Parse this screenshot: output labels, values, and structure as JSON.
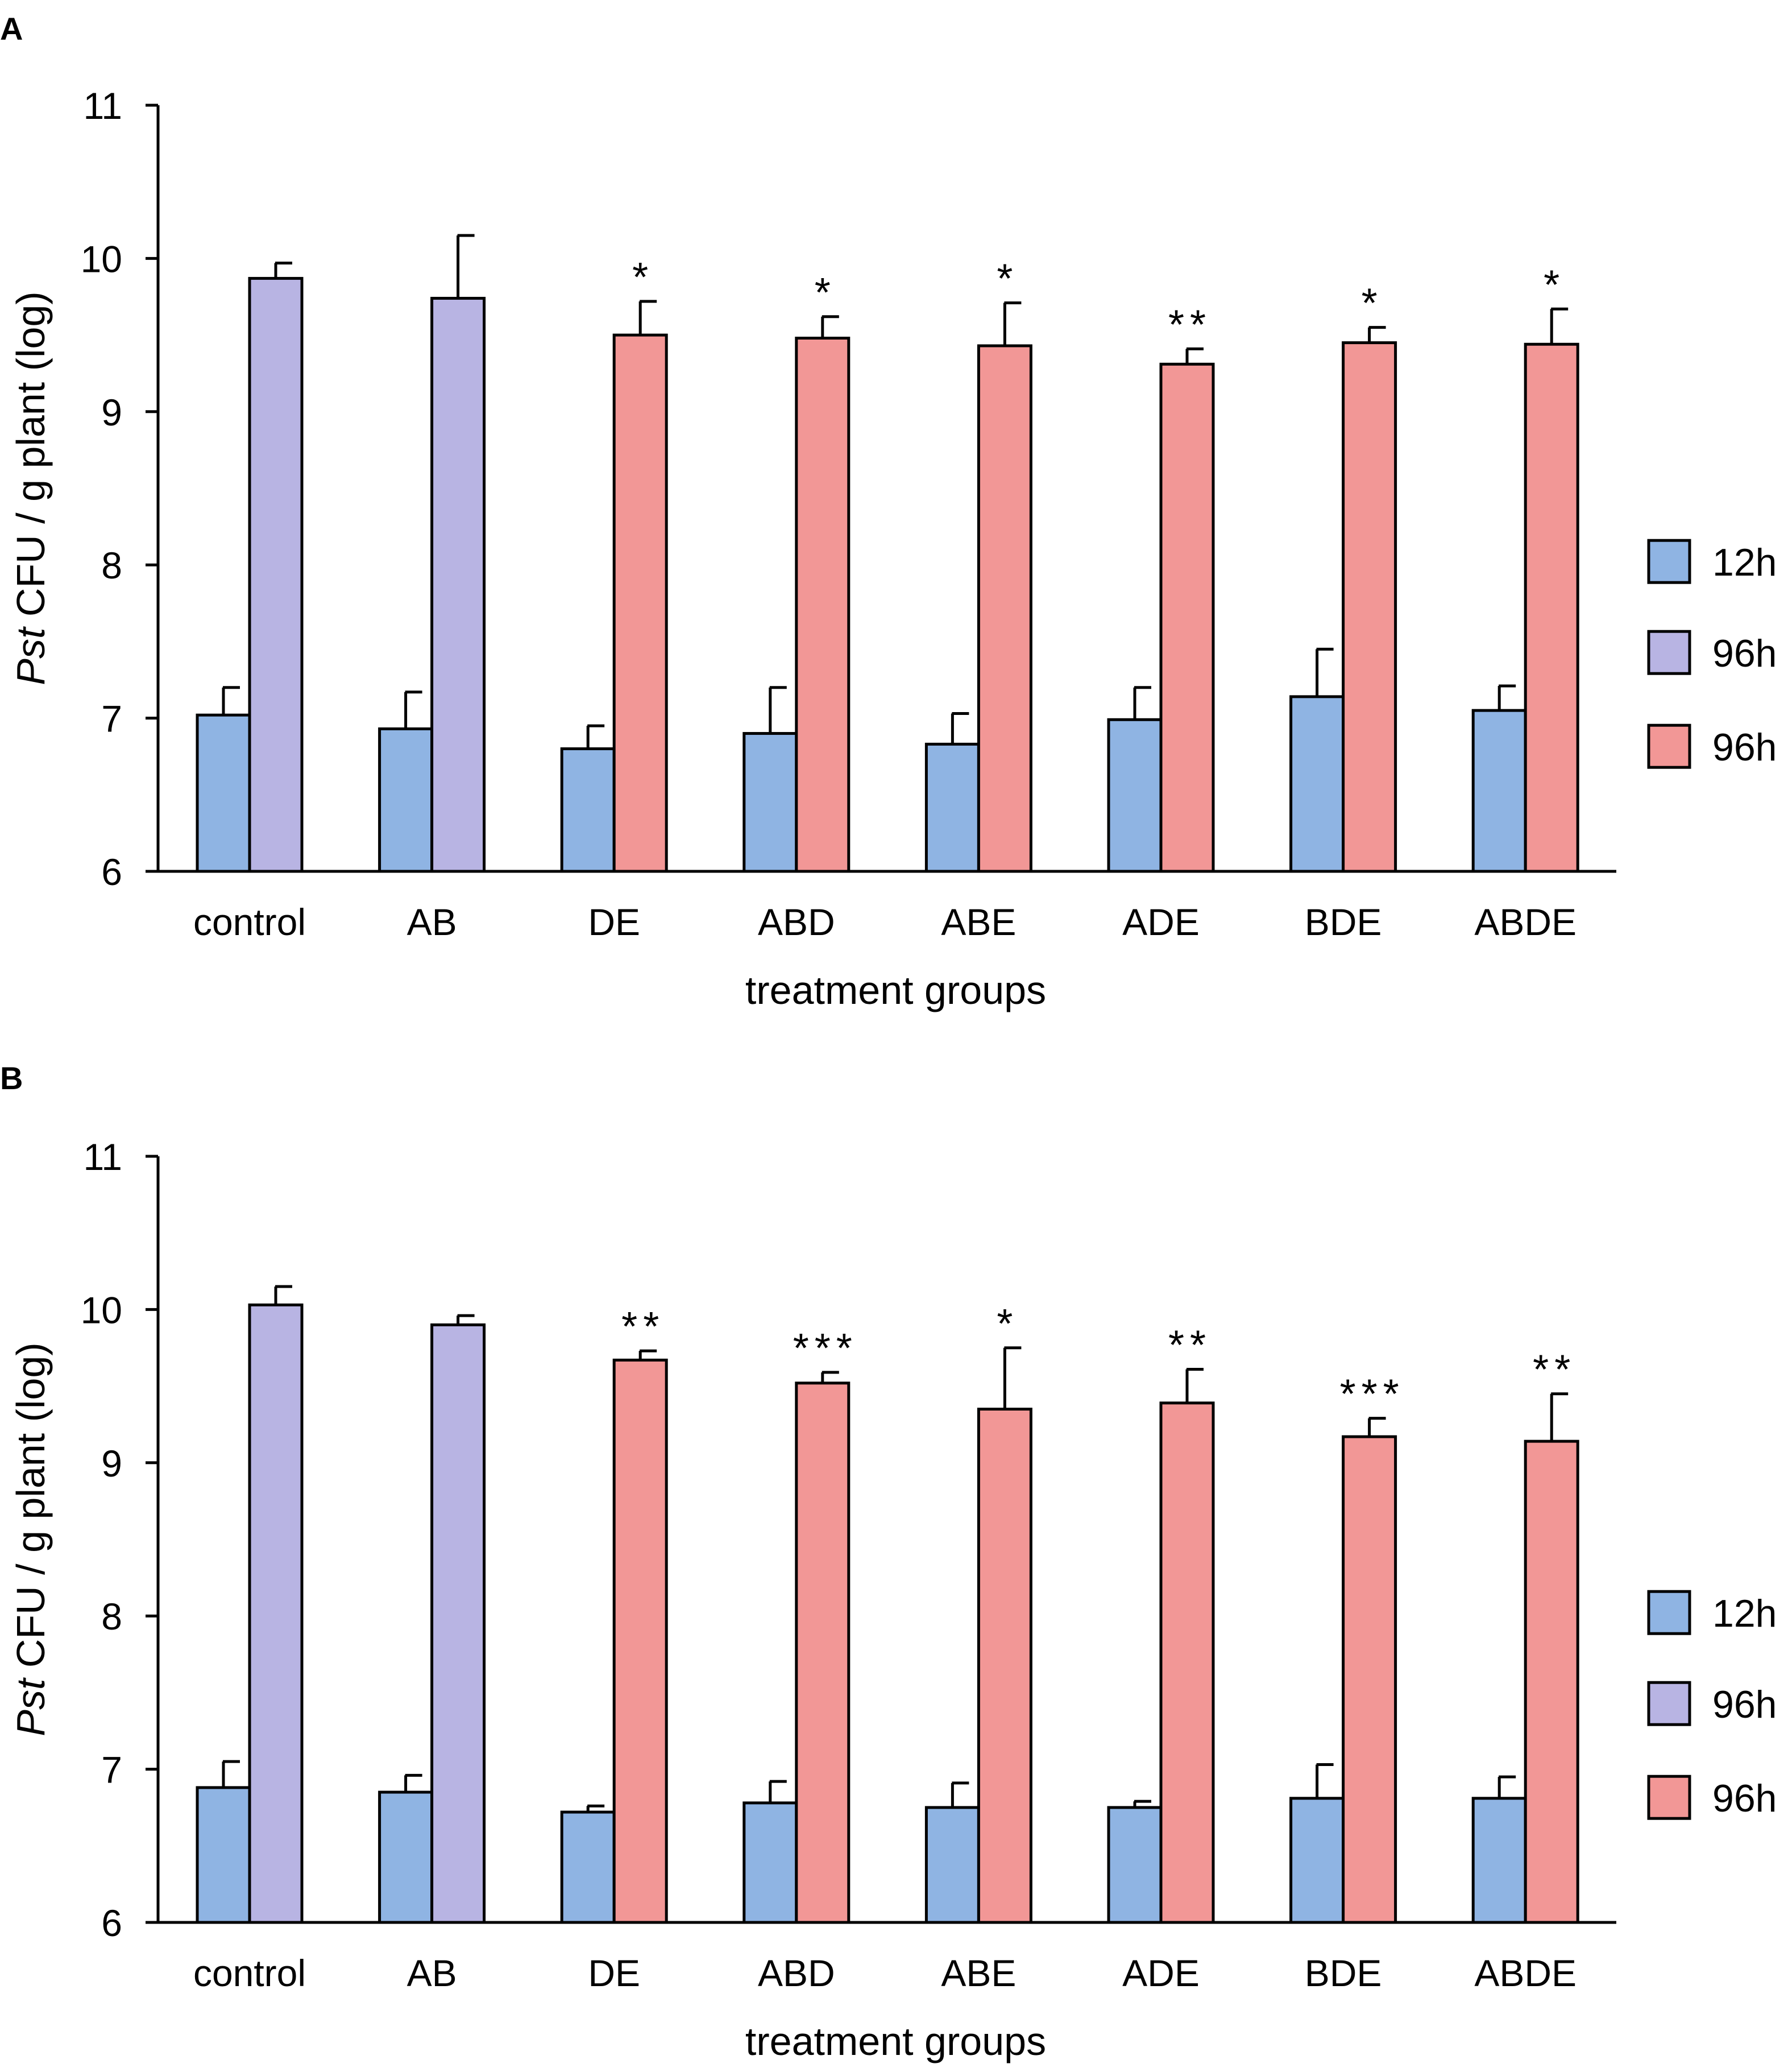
{
  "colors": {
    "12h": "#8FB4E3",
    "96h_control": "#B8B4E3",
    "96h_treat": "#F29796"
  },
  "legend": [
    {
      "label": "12h",
      "color": "#8FB4E3"
    },
    {
      "label": "96h",
      "color": "#B8B4E3"
    },
    {
      "label": "96h",
      "color": "#F29796"
    }
  ],
  "chart_data": [
    {
      "panel": "A",
      "type": "bar",
      "xlabel": "treatment groups",
      "ylabel_italic": "Pst",
      "ylabel_rest": " CFU / g plant (log)",
      "ylim": [
        6,
        11
      ],
      "yticks": [
        6,
        7,
        8,
        9,
        10,
        11
      ],
      "categories": [
        "control",
        "AB",
        "DE",
        "ABD",
        "ABE",
        "ADE",
        "BDE",
        "ABDE"
      ],
      "series": [
        {
          "name": "12h",
          "values": [
            7.02,
            6.93,
            6.8,
            6.9,
            6.83,
            6.99,
            7.14,
            7.05
          ],
          "errors": [
            0.18,
            0.24,
            0.15,
            0.3,
            0.2,
            0.21,
            0.31,
            0.16
          ]
        },
        {
          "name": "96h",
          "values": [
            9.87,
            9.74,
            9.5,
            9.48,
            9.43,
            9.31,
            9.45,
            9.44
          ],
          "errors": [
            0.1,
            0.41,
            0.22,
            0.14,
            0.28,
            0.1,
            0.1,
            0.23
          ]
        }
      ],
      "significance": [
        "",
        "",
        "*",
        "*",
        "*",
        "**",
        "*",
        "*"
      ]
    },
    {
      "panel": "B",
      "type": "bar",
      "xlabel": "treatment groups",
      "ylabel_italic": "Pst",
      "ylabel_rest": " CFU / g plant (log)",
      "ylim": [
        6,
        11
      ],
      "yticks": [
        6,
        7,
        8,
        9,
        10,
        11
      ],
      "categories": [
        "control",
        "AB",
        "DE",
        "ABD",
        "ABE",
        "ADE",
        "BDE",
        "ABDE"
      ],
      "series": [
        {
          "name": "12h",
          "values": [
            6.88,
            6.85,
            6.72,
            6.78,
            6.75,
            6.75,
            6.81,
            6.81
          ],
          "errors": [
            0.17,
            0.11,
            0.04,
            0.14,
            0.16,
            0.04,
            0.22,
            0.14
          ]
        },
        {
          "name": "96h",
          "values": [
            10.03,
            9.9,
            9.67,
            9.52,
            9.35,
            9.39,
            9.17,
            9.14
          ],
          "errors": [
            0.12,
            0.06,
            0.06,
            0.07,
            0.4,
            0.22,
            0.12,
            0.31
          ]
        }
      ],
      "significance": [
        "",
        "",
        "**",
        "***",
        "*",
        "**",
        "***",
        "**"
      ]
    }
  ]
}
